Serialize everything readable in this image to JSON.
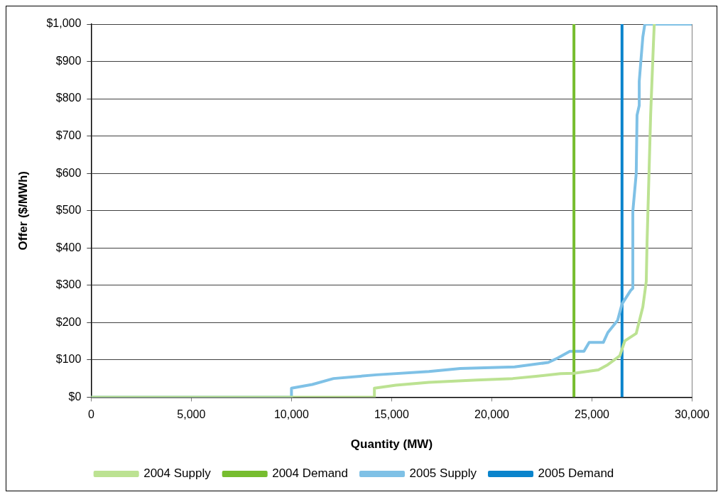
{
  "chart_data": {
    "type": "line",
    "xlabel": "Quantity (MW)",
    "ylabel": "Offer ($/MWh)",
    "xlim": [
      0,
      30000
    ],
    "xticks": [
      0,
      {
        "value": 5000,
        "label": "5,000"
      },
      {
        "value": 10000,
        "label": "10,000"
      },
      {
        "value": 15000,
        "label": "15,000"
      },
      {
        "value": 20000,
        "label": "20,000"
      },
      {
        "value": 25000,
        "label": "25,000"
      },
      {
        "value": 30000,
        "label": "30,000"
      }
    ],
    "ylim": [
      0,
      1000
    ],
    "yticks": [
      {
        "value": 0,
        "label": "$0"
      },
      {
        "value": 100,
        "label": "$100"
      },
      {
        "value": 200,
        "label": "$200"
      },
      {
        "value": 300,
        "label": "$300"
      },
      {
        "value": 400,
        "label": "$400"
      },
      {
        "value": 500,
        "label": "$500"
      },
      {
        "value": 600,
        "label": "$600"
      },
      {
        "value": 700,
        "label": "$700"
      },
      {
        "value": 800,
        "label": "$800"
      },
      {
        "value": 900,
        "label": "$900"
      },
      {
        "value": 1000,
        "label": "$1,000"
      }
    ],
    "grid": "y",
    "legend": "bottom",
    "marker": "none",
    "line_style": "solid",
    "series": [
      {
        "name": "2004 Supply",
        "color": "#bce292",
        "x": [
          0,
          14140,
          14140,
          15210,
          16860,
          19250,
          21040,
          22210,
          23430,
          24100,
          25320,
          25790,
          26390,
          26640,
          27210,
          27540,
          27710,
          27750,
          27820,
          27930,
          28070,
          28110
        ],
        "values": [
          0,
          0,
          24,
          32,
          40,
          46,
          50,
          56,
          63,
          64,
          73,
          87,
          111,
          151,
          171,
          242,
          310,
          415,
          548,
          758,
          950,
          1000
        ]
      },
      {
        "name": "2004 Demand",
        "color": "#77bd2f",
        "x": [
          24100,
          24100
        ],
        "values": [
          0,
          1000
        ]
      },
      {
        "name": "2005 Supply",
        "color": "#7fc1e6",
        "x": [
          0,
          10000,
          10000,
          11040,
          12100,
          14250,
          16860,
          18430,
          21140,
          22820,
          23290,
          23900,
          24600,
          24860,
          25570,
          25790,
          26280,
          26500,
          26930,
          27040,
          27040,
          27210,
          27250,
          27360,
          27360,
          27540,
          27640,
          30000
        ],
        "values": [
          0,
          0,
          24,
          34,
          50,
          60,
          69,
          77,
          81,
          93,
          105,
          123,
          123,
          147,
          147,
          173,
          206,
          250,
          286,
          292,
          498,
          600,
          756,
          782,
          847,
          966,
          1000,
          1000
        ]
      },
      {
        "name": "2005 Demand",
        "color": "#0a84cc",
        "x": [
          26500,
          26500
        ],
        "values": [
          0,
          1000
        ]
      }
    ]
  }
}
